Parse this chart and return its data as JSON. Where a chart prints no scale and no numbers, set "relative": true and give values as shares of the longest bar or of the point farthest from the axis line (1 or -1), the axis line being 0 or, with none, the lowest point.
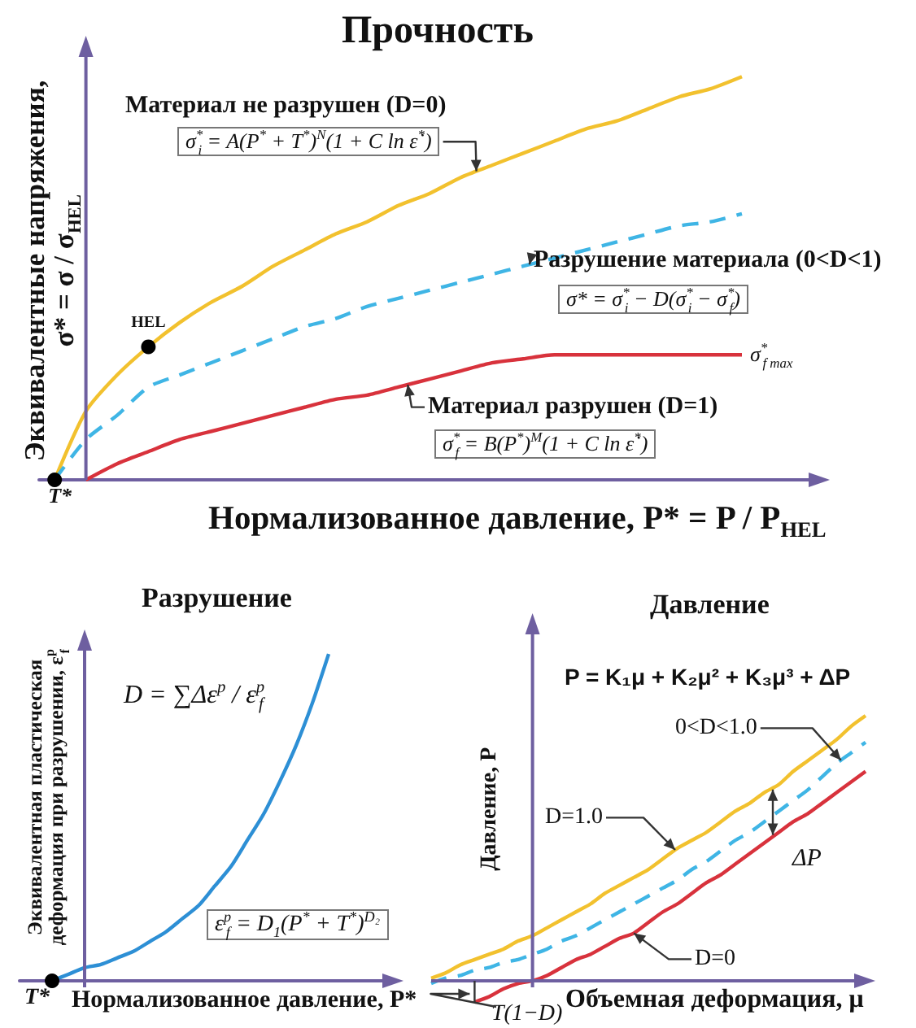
{
  "chart_data": [
    {
      "type": "line",
      "title": "Прочность",
      "xlabel": "Нормализованное давление, P* = P / P$_{HEL}$",
      "ylabel": "Эквивалентные напряжения, σ* = σ / σ$_{HEL}$",
      "relative": true,
      "marker": "none",
      "categories": [
        null,
        null,
        null,
        null,
        null,
        null,
        null,
        null,
        null,
        null,
        null,
        null,
        null,
        null,
        null,
        null,
        null,
        null,
        null,
        null,
        null,
        null,
        null,
        null,
        null
      ],
      "series": [
        {
          "name": "Материал не разрушен (D=0)",
          "color": "#f2c12e",
          "values": [
            0,
            0.17,
            0.26,
            0.33,
            0.39,
            0.44,
            0.48,
            0.53,
            0.57,
            0.61,
            0.64,
            0.68,
            0.71,
            0.75,
            0.78,
            0.81,
            0.84,
            0.87,
            0.89,
            0.92,
            0.95,
            0.97,
            1,
            null,
            null
          ]
        },
        {
          "name": "Разрушение материала (0<D<1)",
          "color": "#3fb5e5",
          "line_style": "dashed",
          "values": [
            0,
            0.1,
            0.16,
            0.23,
            0.26,
            0.29,
            0.32,
            0.35,
            0.38,
            0.4,
            0.43,
            0.45,
            0.47,
            0.49,
            0.51,
            0.53,
            0.55,
            0.57,
            0.59,
            0.61,
            0.63,
            0.64,
            0.66,
            null,
            null
          ]
        },
        {
          "name": "Материал разрушен (D=1)",
          "color": "#d8323c",
          "values": [
            null,
            0,
            0.04,
            0.07,
            0.1,
            0.12,
            0.14,
            0.16,
            0.18,
            0.2,
            0.21,
            0.23,
            0.25,
            0.27,
            0.29,
            0.3,
            0.31,
            0.31,
            0.31,
            0.31,
            0.31,
            0.31,
            0.31,
            null,
            null
          ]
        },
        {
          "name": "HEL",
          "color": "#000000",
          "marker": "circle",
          "values": [
            null,
            null,
            null,
            0.33,
            null,
            null,
            null,
            null,
            null,
            null,
            null,
            null,
            null,
            null,
            null,
            null,
            null,
            null,
            null,
            null,
            null,
            null,
            null,
            null,
            null
          ]
        },
        {
          "color": "#000000",
          "marker": "circle",
          "values": [
            0,
            null,
            null,
            null,
            null,
            null,
            null,
            null,
            null,
            null,
            null,
            null,
            null,
            null,
            null,
            null,
            null,
            null,
            null,
            null,
            null,
            null,
            null,
            null,
            null
          ]
        }
      ],
      "annotations": [
        "σ$^{*}$$_{i}$ = A(P$^{*}$ + T$^{*}$)$^{N}$(1 + C ln ε̇$^{*}$)",
        "σ* = σ$^{*}$$_{i}$ − D(σ$^{*}$$_{i}$ − σ$^{*}$$_{f}$)",
        "σ$^{*}$$_{f}$ = B(P$^{*}$)$^{M}$(1 + C ln ε̇$^{*}$)",
        "σ$^{*}$$_{f max}$",
        "T*"
      ]
    },
    {
      "type": "line",
      "title": "Разрушение",
      "xlabel": "Нормализованное давление, P*",
      "ylabel": "Эквивалентная пластическая деформация при разрушении, ε$^{p}$$_{f}$",
      "relative": true,
      "marker": "none",
      "categories": [
        null,
        null,
        null,
        null,
        null,
        null,
        null,
        null,
        null,
        null,
        null,
        null,
        null,
        null,
        null,
        null,
        null,
        null,
        null,
        null,
        null,
        null,
        null,
        null
      ],
      "series": [
        {
          "color": "#2d8fd5",
          "values": [
            null,
            null,
            0,
            0.02,
            0.04,
            0.05,
            0.07,
            0.09,
            0.12,
            0.15,
            0.19,
            0.23,
            0.29,
            0.35,
            0.43,
            0.51,
            0.61,
            0.72,
            0.85,
            1,
            null,
            null,
            null,
            null
          ]
        },
        {
          "color": "#000000",
          "marker": "circle",
          "values": [
            null,
            null,
            0,
            null,
            null,
            null,
            null,
            null,
            null,
            null,
            null,
            null,
            null,
            null,
            null,
            null,
            null,
            null,
            null,
            null,
            null,
            null,
            null,
            null
          ]
        }
      ],
      "annotations": [
        "D = ∑Δε$^{p}$ / ε$^{p}$$_{f}$",
        "ε$^{p}$$_{f}$ = D$_{1}$(P$^{*}$ + T$^{*}$)$^{D₂}$",
        "T*"
      ]
    },
    {
      "type": "line",
      "title": "Давление",
      "xlabel": "Объемная деформация, μ",
      "ylabel": "Давление, P",
      "relative": true,
      "marker": "none",
      "categories": [
        null,
        null,
        null,
        null,
        null,
        null,
        null,
        null,
        null,
        null,
        null,
        null,
        null,
        null,
        null,
        null,
        null,
        null,
        null,
        null,
        null,
        null,
        null,
        null,
        null,
        null,
        null,
        null,
        null,
        null,
        null
      ],
      "series": [
        {
          "name": "D=1.0",
          "color": "#f2c12e",
          "values": [
            0.01,
            0.03,
            0.06,
            0.08,
            0.1,
            0.12,
            0.15,
            0.17,
            0.2,
            0.23,
            0.26,
            0.29,
            0.33,
            0.36,
            0.39,
            0.42,
            0.46,
            0.5,
            0.53,
            0.56,
            0.6,
            0.64,
            0.67,
            0.71,
            0.74,
            0.79,
            0.83,
            0.87,
            0.91,
            0.96,
            1
          ]
        },
        {
          "name": "0<D<1.0",
          "color": "#3fb5e5",
          "line_style": "dashed",
          "values": [
            -0.01,
            0.01,
            0.02,
            0.04,
            0.05,
            0.07,
            0.08,
            0.1,
            0.12,
            0.15,
            0.17,
            0.2,
            0.23,
            0.26,
            0.29,
            0.32,
            0.35,
            0.38,
            0.42,
            0.45,
            0.49,
            0.53,
            0.56,
            0.6,
            0.64,
            0.68,
            0.72,
            0.77,
            0.82,
            0.86,
            0.9
          ]
        },
        {
          "name": "D=0",
          "color": "#d8323c",
          "values": [
            null,
            null,
            null,
            -0.08,
            -0.06,
            -0.03,
            -0.01,
            0,
            0.02,
            0.05,
            0.08,
            0.1,
            0.13,
            0.16,
            0.18,
            0.22,
            0.26,
            0.29,
            0.33,
            0.37,
            0.4,
            0.44,
            0.48,
            0.52,
            0.56,
            0.6,
            0.63,
            0.67,
            0.71,
            0.75,
            0.79
          ]
        }
      ],
      "ref_lines": [
        {
          "axis": "y",
          "value": 0,
          "color": "#6e5fa0"
        }
      ],
      "annotations": [
        "P = K₁μ + K₂μ² + K₃μ³ + ΔP",
        "ΔP",
        "T(1−D)"
      ]
    }
  ]
}
